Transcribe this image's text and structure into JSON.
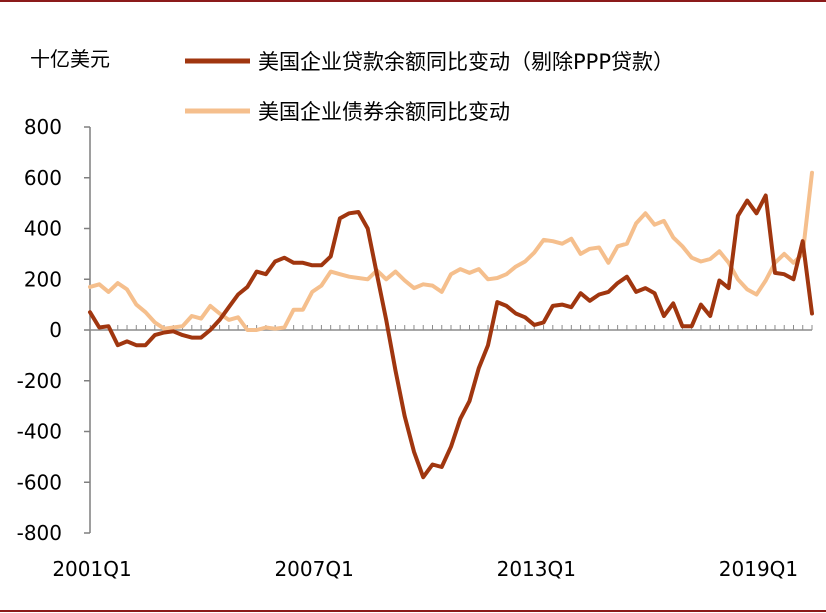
{
  "chart_data": {
    "type": "line",
    "unit_label": "十亿美元",
    "xlabel": "",
    "ylabel": "",
    "ylim": [
      -800,
      800
    ],
    "yticks": [
      800,
      600,
      400,
      200,
      0,
      -200,
      -400,
      -600,
      -800
    ],
    "xtick_labels": [
      "2001Q1",
      "2007Q1",
      "2013Q1",
      "2019Q1"
    ],
    "xtick_index": [
      0,
      24,
      48,
      72
    ],
    "legend_position": "top",
    "x": [
      "2001Q1",
      "2001Q2",
      "2001Q3",
      "2001Q4",
      "2002Q1",
      "2002Q2",
      "2002Q3",
      "2002Q4",
      "2003Q1",
      "2003Q2",
      "2003Q3",
      "2003Q4",
      "2004Q1",
      "2004Q2",
      "2004Q3",
      "2004Q4",
      "2005Q1",
      "2005Q2",
      "2005Q3",
      "2005Q4",
      "2006Q1",
      "2006Q2",
      "2006Q3",
      "2006Q4",
      "2007Q1",
      "2007Q2",
      "2007Q3",
      "2007Q4",
      "2008Q1",
      "2008Q2",
      "2008Q3",
      "2008Q4",
      "2009Q1",
      "2009Q2",
      "2009Q3",
      "2009Q4",
      "2010Q1",
      "2010Q2",
      "2010Q3",
      "2010Q4",
      "2011Q1",
      "2011Q2",
      "2011Q3",
      "2011Q4",
      "2012Q1",
      "2012Q2",
      "2012Q3",
      "2012Q4",
      "2013Q1",
      "2013Q2",
      "2013Q3",
      "2013Q4",
      "2014Q1",
      "2014Q2",
      "2014Q3",
      "2014Q4",
      "2015Q1",
      "2015Q2",
      "2015Q3",
      "2015Q4",
      "2016Q1",
      "2016Q2",
      "2016Q3",
      "2016Q4",
      "2017Q1",
      "2017Q2",
      "2017Q3",
      "2017Q4",
      "2018Q1",
      "2018Q2",
      "2018Q3",
      "2018Q4",
      "2019Q1",
      "2019Q2",
      "2019Q3",
      "2019Q4",
      "2020Q1",
      "2020Q2",
      "2020Q3"
    ],
    "series": [
      {
        "name": "美国企业贷款余额同比变动（剔除PPP贷款）",
        "color": "#a0360f",
        "values": [
          70,
          10,
          15,
          -60,
          -45,
          -60,
          -60,
          -20,
          -10,
          -5,
          -20,
          -30,
          -30,
          0,
          40,
          90,
          140,
          170,
          230,
          220,
          270,
          285,
          265,
          265,
          255,
          255,
          290,
          440,
          460,
          465,
          400,
          220,
          40,
          -160,
          -340,
          -480,
          -580,
          -530,
          -540,
          -460,
          -350,
          -280,
          -150,
          -60,
          110,
          95,
          65,
          50,
          20,
          30,
          95,
          100,
          90,
          145,
          115,
          140,
          150,
          185,
          210,
          150,
          165,
          145,
          55,
          105,
          15,
          15,
          100,
          55,
          195,
          165,
          450,
          510,
          460,
          530,
          225,
          220,
          200,
          350,
          65
        ]
      },
      {
        "name": "美国企业债券余额同比变动",
        "color": "#f5bf8d",
        "values": [
          170,
          180,
          150,
          185,
          160,
          100,
          70,
          30,
          5,
          10,
          15,
          55,
          45,
          95,
          65,
          40,
          50,
          0,
          0,
          10,
          5,
          10,
          80,
          80,
          150,
          175,
          230,
          220,
          210,
          205,
          200,
          235,
          200,
          230,
          195,
          165,
          180,
          175,
          150,
          220,
          240,
          225,
          240,
          200,
          205,
          220,
          250,
          270,
          305,
          355,
          350,
          340,
          360,
          300,
          320,
          325,
          265,
          330,
          340,
          420,
          460,
          415,
          430,
          365,
          330,
          285,
          270,
          280,
          310,
          265,
          200,
          160,
          140,
          195,
          265,
          300,
          265,
          300,
          620
        ]
      }
    ]
  }
}
